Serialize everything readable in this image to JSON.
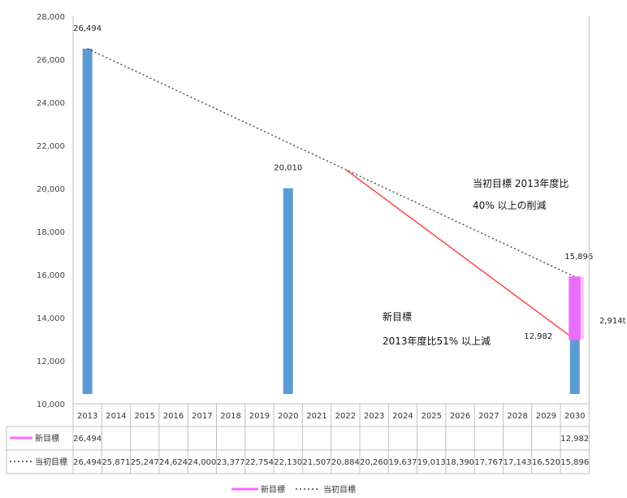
{
  "chart_data": {
    "type": "bar",
    "categories": [
      "2013",
      "2014",
      "2015",
      "2016",
      "2017",
      "2018",
      "2019",
      "2020",
      "2021",
      "2022",
      "2023",
      "2024",
      "2025",
      "2026",
      "2027",
      "2028",
      "2029",
      "2030"
    ],
    "ylim": [
      10000,
      28000
    ],
    "yticks": [
      "10,000",
      "12,000",
      "14,000",
      "16,000",
      "18,000",
      "20,000",
      "22,000",
      "24,000",
      "26,000",
      "28,000"
    ],
    "grid": false,
    "legend_position": "bottom",
    "bars": {
      "color": "#5b9bd5",
      "values": [
        26494,
        null,
        null,
        null,
        null,
        null,
        null,
        20010,
        null,
        null,
        null,
        null,
        null,
        null,
        null,
        null,
        null,
        15896
      ],
      "labels": [
        "26,494",
        "",
        "",
        "",
        "",
        "",
        "",
        "20,010",
        "",
        "",
        "",
        "",
        "",
        "",
        "",
        "",
        "",
        "15,896"
      ]
    },
    "series": [
      {
        "name": "新目標",
        "color": "#ff3b3b",
        "legend_color": "#ff66ff",
        "values": [
          26494,
          null,
          null,
          null,
          null,
          null,
          null,
          null,
          null,
          20884,
          null,
          null,
          null,
          null,
          null,
          null,
          null,
          12982
        ],
        "table_labels": [
          "26,494",
          "",
          "",
          "",
          "",
          "",
          "",
          "",
          "",
          "",
          "",
          "",
          "",
          "",
          "",
          "",
          "",
          "12,982"
        ],
        "point_labels": [
          "",
          "",
          "",
          "",
          "",
          "",
          "",
          "",
          "",
          "",
          "",
          "",
          "",
          "",
          "",
          "",
          "",
          "12,982"
        ]
      },
      {
        "name": "当初目標",
        "color": "#444444",
        "style": "dotted",
        "values": [
          26494,
          25871,
          25247,
          24624,
          24000,
          23377,
          22754,
          22130,
          21507,
          20884,
          20260,
          19637,
          19013,
          18390,
          17767,
          17143,
          16520,
          15896
        ],
        "table_labels": [
          "26,494",
          "25,871",
          "25,247",
          "24,624",
          "24,000",
          "23,377",
          "22,754",
          "22,130",
          "21,507",
          "20,884",
          "20,260",
          "19,637",
          "19,013",
          "18,390",
          "17,767",
          "17,143",
          "16,520",
          "15,896"
        ]
      }
    ],
    "difference_box": {
      "from": 12982,
      "to": 15896,
      "color": "#ff66ff",
      "label": "2,914t"
    },
    "annotations": {
      "original_target_line1": "当初目標  2013年度比",
      "original_target_line2": "40% 以上の削減",
      "new_target_line1": "新目標",
      "new_target_line2": "2013年度比51% 以上減"
    }
  }
}
